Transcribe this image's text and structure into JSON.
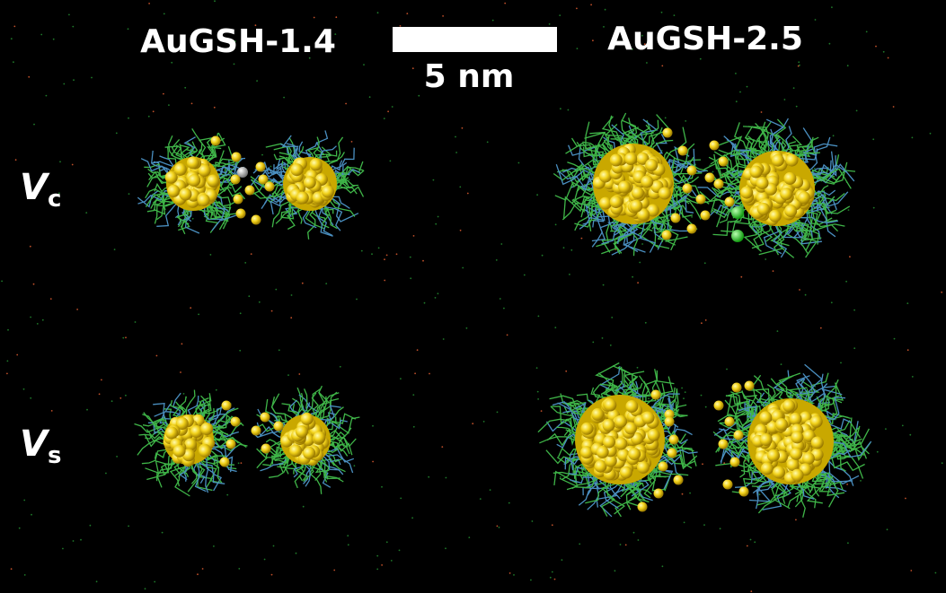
{
  "labels": {
    "left_column": "AuGSH-1.4",
    "right_column": "AuGSH-2.5",
    "scale_bar": "5 nm",
    "row_top": {
      "symbol": "V",
      "subscript": "c"
    },
    "row_bottom": {
      "symbol": "V",
      "subscript": "s"
    }
  }
}
